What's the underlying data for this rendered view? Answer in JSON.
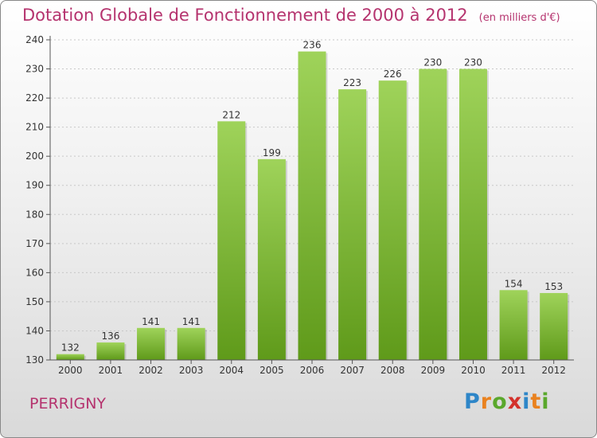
{
  "title": "Dotation Globale de Fonctionnement de 2000 à 2012",
  "unit": "(en milliers d'€)",
  "commune": "PERRIGNY",
  "logo": {
    "letters": [
      "P",
      "r",
      "o",
      "x",
      "i",
      "t",
      "i"
    ],
    "colors": [
      "#2e86c8",
      "#e9821f",
      "#5aa82c",
      "#d3312b",
      "#2e86c8",
      "#e9821f",
      "#5aa82c"
    ]
  },
  "colors": {
    "bar_light": "#9fd35a",
    "bar_dark": "#5f9a1a",
    "title": "#b5336e"
  },
  "chart_data": {
    "type": "bar",
    "categories": [
      "2000",
      "2001",
      "2002",
      "2003",
      "2004",
      "2005",
      "2006",
      "2007",
      "2008",
      "2009",
      "2010",
      "2011",
      "2012"
    ],
    "values": [
      132,
      136,
      141,
      141,
      212,
      199,
      236,
      223,
      226,
      230,
      230,
      154,
      153
    ],
    "ylim": [
      130,
      240
    ],
    "yticks": [
      130,
      140,
      150,
      160,
      170,
      180,
      190,
      200,
      210,
      220,
      230,
      240
    ],
    "grid": true
  }
}
